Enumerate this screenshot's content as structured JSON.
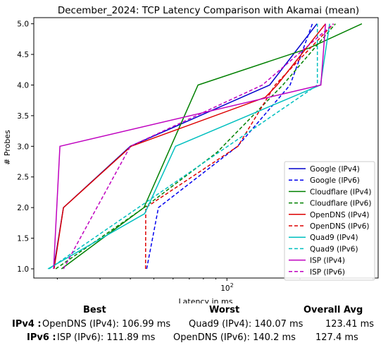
{
  "chart_data": {
    "type": "line",
    "title": "December_2024: TCP Latency Comparison with Akamai (mean)",
    "xlabel": "Latency in ms",
    "ylabel": "# Probes",
    "xscale": "log",
    "xlim": [
      16,
      420
    ],
    "ylim": [
      0.85,
      5.1
    ],
    "x_tick_labels": [
      "10^2"
    ],
    "y_ticks": [
      "1.0",
      "1.5",
      "2.0",
      "2.5",
      "3.0",
      "3.5",
      "4.0",
      "4.5",
      "5.0"
    ],
    "grid": false,
    "legend_position": "lower right",
    "series": [
      {
        "name": "Google (IPv4)",
        "color": "#0000cc",
        "dash": "solid",
        "points": [
          [
            19.3,
            1
          ],
          [
            21.2,
            2
          ],
          [
            40,
            3
          ],
          [
            150,
            4
          ],
          [
            235,
            5
          ]
        ]
      },
      {
        "name": "Google (IPv6)",
        "color": "#0000ee",
        "dash": "dashed",
        "points": [
          [
            46.7,
            1
          ],
          [
            52.2,
            2
          ],
          [
            110.6,
            3
          ],
          [
            182,
            4
          ],
          [
            225,
            5
          ]
        ]
      },
      {
        "name": "Cloudflare (IPv4)",
        "color": "#008000",
        "dash": "solid",
        "points": [
          [
            20.8,
            1
          ],
          [
            45.5,
            2
          ],
          [
            76,
            4
          ],
          [
            217,
            4.6
          ],
          [
            360,
            5
          ]
        ]
      },
      {
        "name": "Cloudflare (IPv6)",
        "color": "#008000",
        "dash": "dashed",
        "points": [
          [
            19.7,
            1
          ],
          [
            45.6,
            2
          ],
          [
            91,
            2.9
          ],
          [
            170,
            4
          ],
          [
            280,
            5
          ]
        ]
      },
      {
        "name": "OpenDNS (IPv4)",
        "color": "#dd0000",
        "dash": "solid",
        "points": [
          [
            19.4,
            1
          ],
          [
            21.2,
            2
          ],
          [
            40.3,
            3
          ],
          [
            144,
            3.8
          ],
          [
            161,
            4
          ],
          [
            255,
            5
          ]
        ]
      },
      {
        "name": "OpenDNS (IPv6)",
        "color": "#dd0000",
        "dash": "dashed",
        "points": [
          [
            46.2,
            1
          ],
          [
            46.3,
            2
          ],
          [
            111,
            3
          ],
          [
            158,
            4
          ],
          [
            275,
            5
          ]
        ]
      },
      {
        "name": "Quad9 (IPv4)",
        "color": "#00bfbf",
        "dash": "solid",
        "points": [
          [
            18.3,
            1
          ],
          [
            45.8,
            1.9
          ],
          [
            61.4,
            3
          ],
          [
            243,
            4
          ],
          [
            265,
            5
          ]
        ]
      },
      {
        "name": "Quad9 (IPv6)",
        "color": "#00bfbf",
        "dash": "dashed",
        "points": [
          [
            18.5,
            1
          ],
          [
            78,
            2.7
          ],
          [
            236,
            4
          ],
          [
            236,
            5
          ]
        ]
      },
      {
        "name": "ISP (IPv4)",
        "color": "#bf00bf",
        "dash": "solid",
        "points": [
          [
            19.3,
            1
          ],
          [
            20.5,
            3
          ],
          [
            244,
            4
          ],
          [
            255,
            5
          ]
        ]
      },
      {
        "name": "ISP (IPv6)",
        "color": "#bf00bf",
        "dash": "dashed",
        "points": [
          [
            21.2,
            1
          ],
          [
            40,
            3
          ],
          [
            140,
            4
          ],
          [
            275,
            5
          ]
        ]
      }
    ]
  },
  "summary": {
    "headers": {
      "best": "Best",
      "worst": "Worst",
      "avg": "Overall Avg"
    },
    "rows": [
      {
        "label": "IPv4 :",
        "best": "OpenDNS (IPv4): 106.99 ms",
        "worst": "Quad9 (IPv4): 140.07 ms",
        "avg": "123.41 ms"
      },
      {
        "label": "IPv6 :",
        "best": "ISP (IPv6): 111.89 ms",
        "worst": "OpenDNS (IPv6): 140.2 ms",
        "avg": "127.4 ms"
      }
    ]
  }
}
